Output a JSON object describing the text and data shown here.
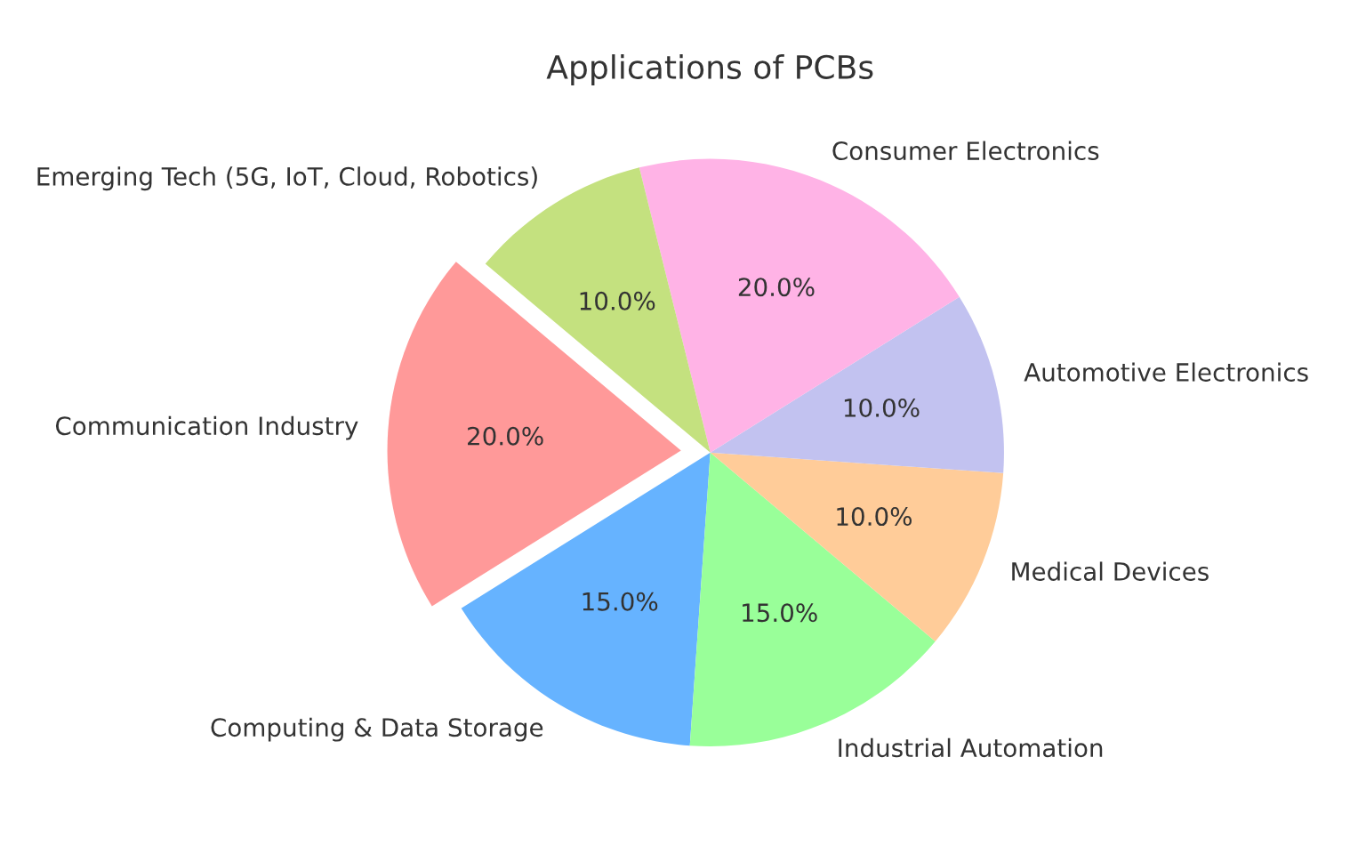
{
  "chart_data": {
    "type": "pie",
    "title": "Applications of PCBs",
    "categories": [
      "Communication Industry",
      "Computing & Data Storage",
      "Industrial Automation",
      "Medical Devices",
      "Automotive Electronics",
      "Consumer Electronics",
      "Emerging Tech (5G, IoT, Cloud, Robotics)"
    ],
    "values": [
      20,
      15,
      15,
      10,
      10,
      20,
      10
    ],
    "colors": [
      "#ff9999",
      "#66b3ff",
      "#99ff99",
      "#ffcc99",
      "#c2c2f0",
      "#ffb3e6",
      "#c4e17f"
    ],
    "value_labels": [
      "20.0%",
      "15.0%",
      "15.0%",
      "10.0%",
      "10.0%",
      "20.0%",
      "10.0%"
    ]
  }
}
